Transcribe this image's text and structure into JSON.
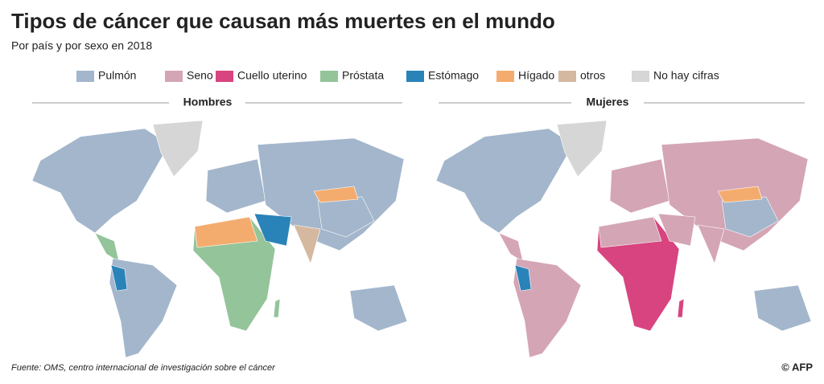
{
  "header": {
    "title": "Tipos de cáncer que causan más muertes en el mundo",
    "subtitle": "Por país y por sexo en 2018"
  },
  "legend": [
    {
      "label": "Pulmón",
      "color": "#a3b6cc"
    },
    {
      "label": "Seno",
      "color": "#d4a5b5"
    },
    {
      "label": "Cuello uterino",
      "color": "#d8447f"
    },
    {
      "label": "Próstata",
      "color": "#94c49a"
    },
    {
      "label": "Estómago",
      "color": "#2a83b8"
    },
    {
      "label": "Hígado",
      "color": "#f4ac6e"
    },
    {
      "label": "otros",
      "color": "#d4b9a0"
    },
    {
      "label": "No hay cifras",
      "color": "#d6d6d6"
    }
  ],
  "maps": [
    {
      "title": "Hombres"
    },
    {
      "title": "Mujeres"
    }
  ],
  "footer": {
    "source": "Fuente: OMS, centro internacional de investigación sobre el cáncer",
    "credit": "© AFP"
  }
}
